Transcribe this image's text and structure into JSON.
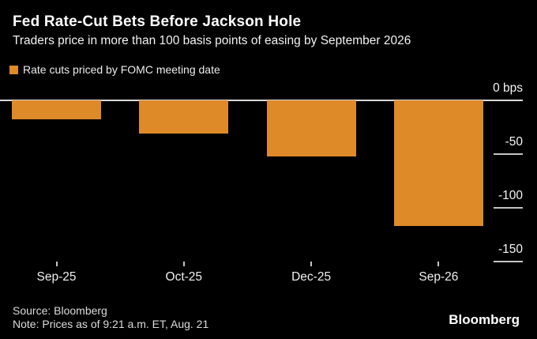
{
  "chart": {
    "title": "Fed Rate-Cut Bets Before Jackson Hole",
    "subtitle": "Traders price in more than 100 basis points of easing by September 2026",
    "legend": {
      "label": "Rate cuts priced by FOMC meeting date",
      "swatch_color": "#de8a29"
    }
  },
  "chart_data": {
    "type": "bar",
    "categories": [
      "Sep-25",
      "Oct-25",
      "Dec-25",
      "Sep-26"
    ],
    "values": [
      -18,
      -31,
      -52,
      -117
    ],
    "title": "Fed Rate-Cut Bets Before Jackson Hole",
    "subtitle": "Traders price in more than 100 basis points of easing by September 2026",
    "xlabel": "",
    "ylabel": "bps",
    "ylim": [
      -160,
      0
    ],
    "yticks": [
      0,
      -50,
      -100,
      -150
    ],
    "ytick_labels": [
      "0 bps",
      "-50",
      "-100",
      "-150"
    ],
    "bar_color": "#de8a29",
    "axis_side": "right",
    "grid": false,
    "legend_position": "top-left",
    "legend_entries": [
      "Rate cuts priced by FOMC meeting date"
    ]
  },
  "footer": {
    "source": "Source: Bloomberg",
    "note": "Note: Prices as of 9:21 a.m. ET, Aug. 21",
    "brand": "Bloomberg"
  }
}
